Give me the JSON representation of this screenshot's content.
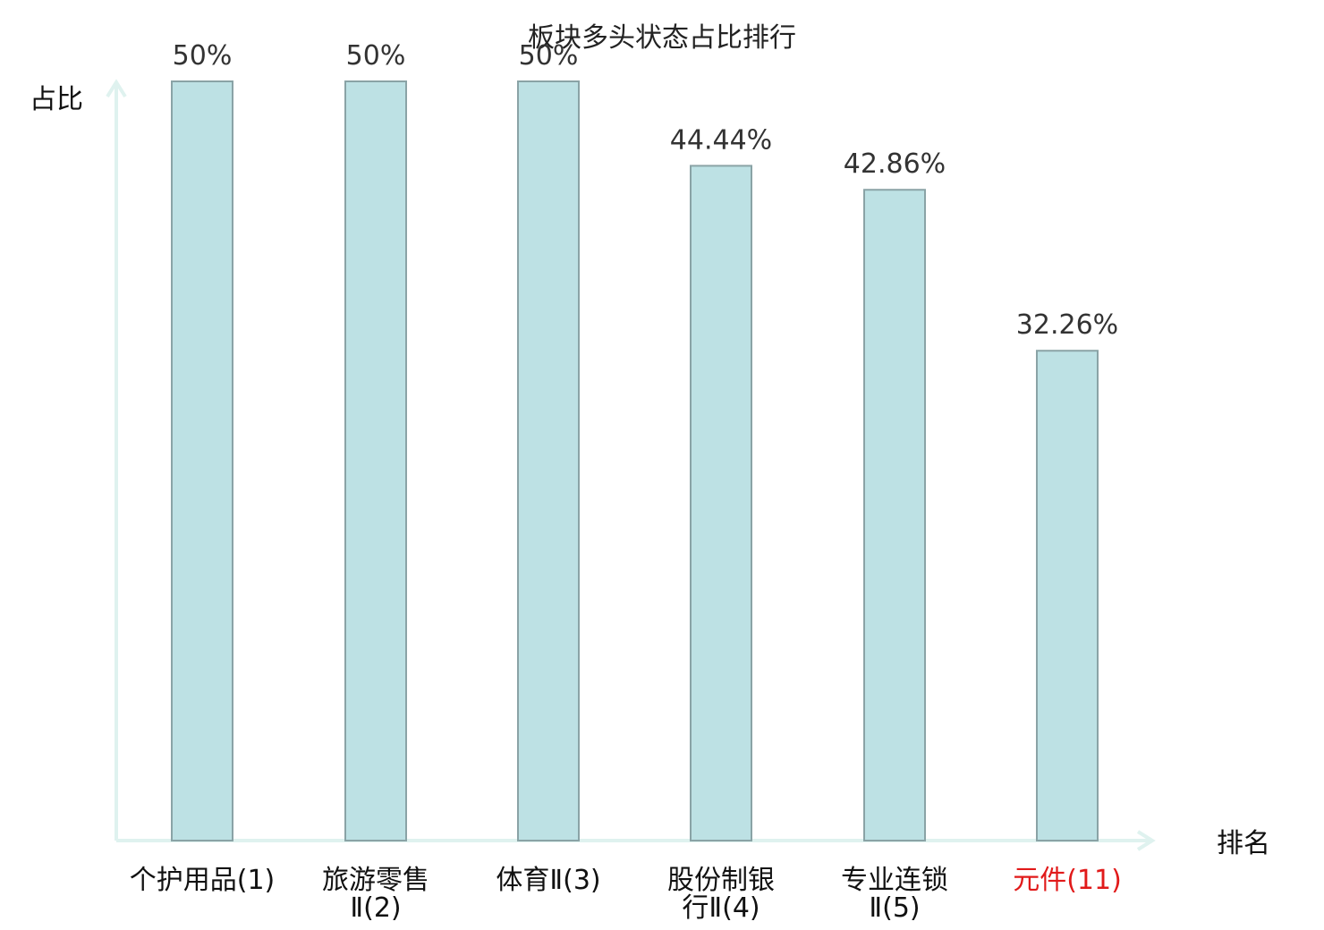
{
  "chart_data": {
    "type": "bar",
    "title": "板块多头状态占比排行",
    "xlabel": "排名",
    "ylabel": "占比",
    "ylim": [
      0,
      50
    ],
    "grid": false,
    "categories": [
      {
        "lines": [
          "个护用品(1)"
        ],
        "highlight": false
      },
      {
        "lines": [
          "旅游零售",
          "Ⅱ(2)"
        ],
        "highlight": false
      },
      {
        "lines": [
          "体育Ⅱ(3)"
        ],
        "highlight": false
      },
      {
        "lines": [
          "股份制银",
          "行Ⅱ(4)"
        ],
        "highlight": false
      },
      {
        "lines": [
          "专业连锁",
          "Ⅱ(5)"
        ],
        "highlight": false
      },
      {
        "lines": [
          "元件(11)"
        ],
        "highlight": true
      }
    ],
    "values": [
      50,
      50,
      50,
      44.44,
      42.86,
      32.26
    ],
    "value_labels": [
      "50%",
      "50%",
      "50%",
      "44.44%",
      "42.86%",
      "32.26%"
    ]
  },
  "colors": {
    "bar_fill": "#bde1e4",
    "bar_stroke": "#8aa3a6",
    "axis": "#dff2ef",
    "highlight_text": "#e11a1a",
    "normal_text": "#111111"
  }
}
